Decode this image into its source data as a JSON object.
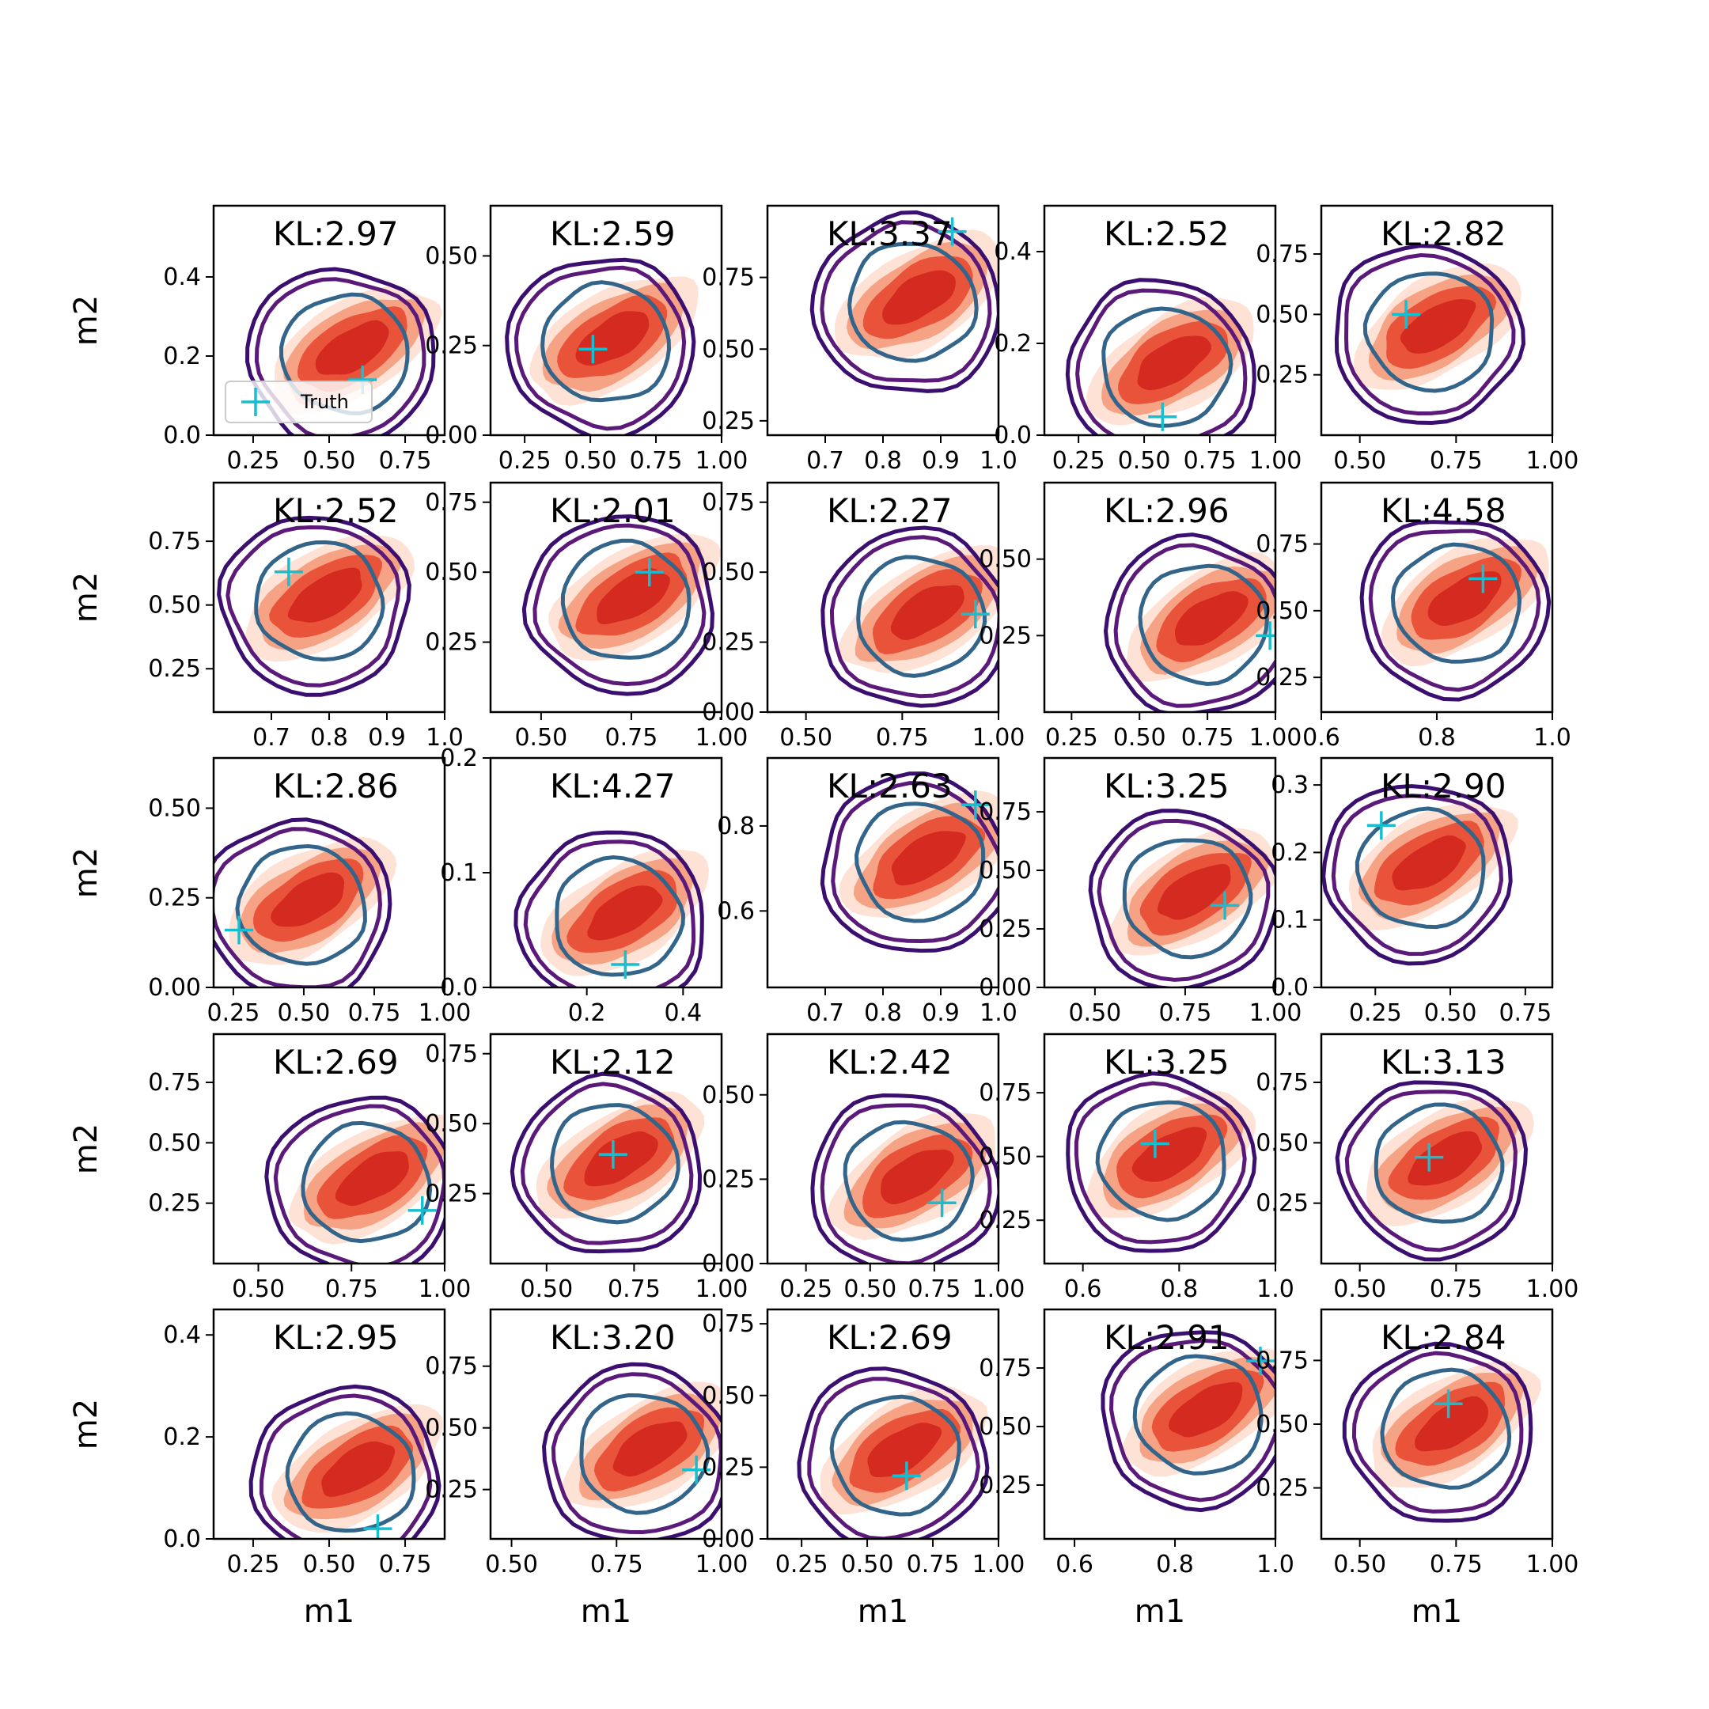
{
  "figure": {
    "legend_label": "Truth",
    "colors": {
      "fill_dark": "#d42a20",
      "fill_mid": "#e8533a",
      "fill_light": "#f6a285",
      "fill_faint": "#fde2d5",
      "contour_outer": "#3b0f6f",
      "contour_mid": "#5b1a7a",
      "contour_inner": "#33658a",
      "truth_marker": "#17becf",
      "axis": "#000000"
    }
  },
  "chart_data": [
    {
      "type": "contour",
      "kl": "KL:2.97",
      "xlim": [
        0.12,
        0.88
      ],
      "ylim": [
        0,
        0.58
      ],
      "xticks": [
        "0.25",
        "0.50",
        "0.75"
      ],
      "xtickv": [
        0.25,
        0.5,
        0.75
      ],
      "yticks": [
        "0.0",
        "0.2",
        "0.4"
      ],
      "ytickv": [
        0,
        0.2,
        0.4
      ],
      "truth": [
        0.61,
        0.14
      ],
      "ylabel": "m2",
      "legend": true
    },
    {
      "type": "contour",
      "kl": "KL:2.59",
      "xlim": [
        0.12,
        1.0
      ],
      "ylim": [
        0,
        0.64
      ],
      "xticks": [
        "0.25",
        "0.50",
        "0.75",
        "1.00"
      ],
      "xtickv": [
        0.25,
        0.5,
        0.75,
        1.0
      ],
      "yticks": [
        "0.00",
        "0.25",
        "0.50"
      ],
      "ytickv": [
        0,
        0.25,
        0.5
      ],
      "truth": [
        0.51,
        0.24
      ]
    },
    {
      "type": "contour",
      "kl": "KL:3.37",
      "xlim": [
        0.6,
        1.0
      ],
      "ylim": [
        0.2,
        1.0
      ],
      "xticks": [
        "0.7",
        "0.8",
        "0.9",
        "1.0"
      ],
      "xtickv": [
        0.7,
        0.8,
        0.9,
        1.0
      ],
      "yticks": [
        "0.25",
        "0.50",
        "0.75"
      ],
      "ytickv": [
        0.25,
        0.5,
        0.75
      ],
      "truth": [
        0.92,
        0.91
      ]
    },
    {
      "type": "contour",
      "kl": "KL:2.52",
      "xlim": [
        0.12,
        1.0
      ],
      "ylim": [
        0,
        0.5
      ],
      "xticks": [
        "0.25",
        "0.50",
        "0.75",
        "1.00"
      ],
      "xtickv": [
        0.25,
        0.5,
        0.75,
        1.0
      ],
      "yticks": [
        "0.0",
        "0.2",
        "0.4"
      ],
      "ytickv": [
        0,
        0.2,
        0.4
      ],
      "truth": [
        0.57,
        0.04
      ]
    },
    {
      "type": "contour",
      "kl": "KL:2.82",
      "xlim": [
        0.4,
        1.0
      ],
      "ylim": [
        0.0,
        0.95
      ],
      "xticks": [
        "0.50",
        "0.75",
        "1.00"
      ],
      "xtickv": [
        0.5,
        0.75,
        1.0
      ],
      "yticks": [
        "0.25",
        "0.50",
        "0.75"
      ],
      "ytickv": [
        0.25,
        0.5,
        0.75
      ],
      "truth": [
        0.62,
        0.5
      ]
    },
    {
      "type": "contour",
      "kl": "KL:2.52",
      "xlim": [
        0.6,
        1.0
      ],
      "ylim": [
        0.08,
        0.98
      ],
      "xticks": [
        "0.7",
        "0.8",
        "0.9",
        "1.0"
      ],
      "xtickv": [
        0.7,
        0.8,
        0.9,
        1.0
      ],
      "yticks": [
        "0.25",
        "0.50",
        "0.75"
      ],
      "ytickv": [
        0.25,
        0.5,
        0.75
      ],
      "truth": [
        0.73,
        0.63
      ],
      "ylabel": "m2"
    },
    {
      "type": "contour",
      "kl": "KL:2.01",
      "xlim": [
        0.36,
        1.0
      ],
      "ylim": [
        0.0,
        0.82
      ],
      "xticks": [
        "0.50",
        "0.75",
        "1.00"
      ],
      "xtickv": [
        0.5,
        0.75,
        1.0
      ],
      "yticks": [
        "0.25",
        "0.50",
        "0.75"
      ],
      "ytickv": [
        0.25,
        0.5,
        0.75
      ],
      "truth": [
        0.8,
        0.5
      ]
    },
    {
      "type": "contour",
      "kl": "KL:2.27",
      "xlim": [
        0.4,
        1.0
      ],
      "ylim": [
        0.0,
        0.82
      ],
      "xticks": [
        "0.50",
        "0.75",
        "1.00"
      ],
      "xtickv": [
        0.5,
        0.75,
        1.0
      ],
      "yticks": [
        "0.00",
        "0.25",
        "0.50",
        "0.75"
      ],
      "ytickv": [
        0,
        0.25,
        0.5,
        0.75
      ],
      "truth": [
        0.94,
        0.35
      ]
    },
    {
      "type": "contour",
      "kl": "KL:2.96",
      "xlim": [
        0.15,
        1.0
      ],
      "ylim": [
        0.0,
        0.75
      ],
      "xticks": [
        "0.25",
        "0.50",
        "0.75",
        "1.00"
      ],
      "xtickv": [
        0.25,
        0.5,
        0.75,
        1.0
      ],
      "yticks": [
        "0.25",
        "0.50"
      ],
      "ytickv": [
        0.25,
        0.5
      ],
      "truth": [
        0.98,
        0.25
      ]
    },
    {
      "type": "contour",
      "kl": "KL:4.58",
      "xlim": [
        0.6,
        1.0
      ],
      "ylim": [
        0.12,
        0.98
      ],
      "xticks": [
        "0.6",
        "0.8",
        "1.0"
      ],
      "xtickv": [
        0.6,
        0.8,
        1.0
      ],
      "yticks": [
        "0.25",
        "0.50",
        "0.75"
      ],
      "ytickv": [
        0.25,
        0.5,
        0.75
      ],
      "truth": [
        0.88,
        0.62
      ]
    },
    {
      "type": "contour",
      "kl": "KL:2.86",
      "xlim": [
        0.18,
        1.0
      ],
      "ylim": [
        0,
        0.64
      ],
      "xticks": [
        "0.25",
        "0.50",
        "0.75",
        "1.00"
      ],
      "xtickv": [
        0.25,
        0.5,
        0.75,
        1.0
      ],
      "yticks": [
        "0.00",
        "0.25",
        "0.50"
      ],
      "ytickv": [
        0,
        0.25,
        0.5
      ],
      "truth": [
        0.27,
        0.16
      ],
      "ylabel": "m2"
    },
    {
      "type": "contour",
      "kl": "KL:4.27",
      "xlim": [
        0.0,
        0.48
      ],
      "ylim": [
        0,
        0.2
      ],
      "xticks": [
        "0.2",
        "0.4"
      ],
      "xtickv": [
        0.2,
        0.4
      ],
      "yticks": [
        "0.0",
        "0.1",
        "0.2"
      ],
      "ytickv": [
        0,
        0.1,
        0.2
      ],
      "truth": [
        0.28,
        0.02
      ]
    },
    {
      "type": "contour",
      "kl": "KL:2.63",
      "xlim": [
        0.6,
        1.0
      ],
      "ylim": [
        0.42,
        0.96
      ],
      "xticks": [
        "0.7",
        "0.8",
        "0.9",
        "1.0"
      ],
      "xtickv": [
        0.7,
        0.8,
        0.9,
        1.0
      ],
      "yticks": [
        "0.6",
        "0.8"
      ],
      "ytickv": [
        0.6,
        0.8
      ],
      "truth": [
        0.96,
        0.85
      ]
    },
    {
      "type": "contour",
      "kl": "KL:3.25",
      "xlim": [
        0.36,
        1.0
      ],
      "ylim": [
        0.0,
        0.98
      ],
      "xticks": [
        "0.50",
        "0.75",
        "1.00"
      ],
      "xtickv": [
        0.5,
        0.75,
        1.0
      ],
      "yticks": [
        "0.00",
        "0.25",
        "0.50",
        "0.75"
      ],
      "ytickv": [
        0,
        0.25,
        0.5,
        0.75
      ],
      "truth": [
        0.86,
        0.35
      ]
    },
    {
      "type": "contour",
      "kl": "KL:2.90",
      "xlim": [
        0.07,
        0.84
      ],
      "ylim": [
        0,
        0.34
      ],
      "xticks": [
        "0.25",
        "0.50",
        "0.75"
      ],
      "xtickv": [
        0.25,
        0.5,
        0.75
      ],
      "yticks": [
        "0.0",
        "0.1",
        "0.2",
        "0.3"
      ],
      "ytickv": [
        0,
        0.1,
        0.2,
        0.3
      ],
      "truth": [
        0.27,
        0.24
      ]
    },
    {
      "type": "contour",
      "kl": "KL:2.69",
      "xlim": [
        0.38,
        1.0
      ],
      "ylim": [
        0.0,
        0.95
      ],
      "xticks": [
        "0.50",
        "0.75",
        "1.00"
      ],
      "xtickv": [
        0.5,
        0.75,
        1.0
      ],
      "yticks": [
        "0.25",
        "0.50",
        "0.75"
      ],
      "ytickv": [
        0.25,
        0.5,
        0.75
      ],
      "truth": [
        0.94,
        0.22
      ],
      "ylabel": "m2"
    },
    {
      "type": "contour",
      "kl": "KL:2.12",
      "xlim": [
        0.34,
        1.0
      ],
      "ylim": [
        0.0,
        0.82
      ],
      "xticks": [
        "0.50",
        "0.75",
        "1.00"
      ],
      "xtickv": [
        0.5,
        0.75,
        1.0
      ],
      "yticks": [
        "0.25",
        "0.50",
        "0.75"
      ],
      "ytickv": [
        0.25,
        0.5,
        0.75
      ],
      "truth": [
        0.69,
        0.39
      ]
    },
    {
      "type": "contour",
      "kl": "KL:2.42",
      "xlim": [
        0.1,
        1.0
      ],
      "ylim": [
        0,
        0.68
      ],
      "xticks": [
        "0.25",
        "0.50",
        "0.75",
        "1.00"
      ],
      "xtickv": [
        0.25,
        0.5,
        0.75,
        1.0
      ],
      "yticks": [
        "0.00",
        "0.25",
        "0.50"
      ],
      "ytickv": [
        0,
        0.25,
        0.5
      ],
      "truth": [
        0.78,
        0.18
      ]
    },
    {
      "type": "contour",
      "kl": "KL:3.25",
      "xlim": [
        0.52,
        1.0
      ],
      "ylim": [
        0.08,
        0.98
      ],
      "xticks": [
        "0.6",
        "0.8",
        "1.0"
      ],
      "xtickv": [
        0.6,
        0.8,
        1.0
      ],
      "yticks": [
        "0.25",
        "0.50",
        "0.75"
      ],
      "ytickv": [
        0.25,
        0.5,
        0.75
      ],
      "truth": [
        0.75,
        0.55
      ]
    },
    {
      "type": "contour",
      "kl": "KL:3.13",
      "xlim": [
        0.4,
        1.0
      ],
      "ylim": [
        0.0,
        0.95
      ],
      "xticks": [
        "0.50",
        "0.75",
        "1.00"
      ],
      "xtickv": [
        0.5,
        0.75,
        1.0
      ],
      "yticks": [
        "0.25",
        "0.50",
        "0.75"
      ],
      "ytickv": [
        0.25,
        0.5,
        0.75
      ],
      "truth": [
        0.68,
        0.44
      ]
    },
    {
      "type": "contour",
      "kl": "KL:2.95",
      "xlim": [
        0.12,
        0.88
      ],
      "ylim": [
        0,
        0.45
      ],
      "xticks": [
        "0.25",
        "0.50",
        "0.75"
      ],
      "xtickv": [
        0.25,
        0.5,
        0.75
      ],
      "yticks": [
        "0.0",
        "0.2",
        "0.4"
      ],
      "ytickv": [
        0,
        0.2,
        0.4
      ],
      "truth": [
        0.66,
        0.02
      ],
      "ylabel": "m2",
      "xlabel": "m1"
    },
    {
      "type": "contour",
      "kl": "KL:3.20",
      "xlim": [
        0.45,
        1.0
      ],
      "ylim": [
        0.05,
        0.98
      ],
      "xticks": [
        "0.50",
        "0.75",
        "1.00"
      ],
      "xtickv": [
        0.5,
        0.75,
        1.0
      ],
      "yticks": [
        "0.25",
        "0.50",
        "0.75"
      ],
      "ytickv": [
        0.25,
        0.5,
        0.75
      ],
      "truth": [
        0.94,
        0.33
      ],
      "xlabel": "m1"
    },
    {
      "type": "contour",
      "kl": "KL:2.69",
      "xlim": [
        0.12,
        1.0
      ],
      "ylim": [
        0,
        0.8
      ],
      "xticks": [
        "0.25",
        "0.50",
        "0.75",
        "1.00"
      ],
      "xtickv": [
        0.25,
        0.5,
        0.75,
        1.0
      ],
      "yticks": [
        "0.00",
        "0.25",
        "0.50",
        "0.75"
      ],
      "ytickv": [
        0,
        0.25,
        0.5,
        0.75
      ],
      "truth": [
        0.65,
        0.22
      ],
      "xlabel": "m1"
    },
    {
      "type": "contour",
      "kl": "KL:2.91",
      "xlim": [
        0.54,
        1.0
      ],
      "ylim": [
        0.02,
        1.0
      ],
      "xticks": [
        "0.6",
        "0.8",
        "1.0"
      ],
      "xtickv": [
        0.6,
        0.8,
        1.0
      ],
      "yticks": [
        "0.25",
        "0.50",
        "0.75"
      ],
      "ytickv": [
        0.25,
        0.5,
        0.75
      ],
      "truth": [
        0.97,
        0.78
      ],
      "xlabel": "m1"
    },
    {
      "type": "contour",
      "kl": "KL:2.84",
      "xlim": [
        0.4,
        1.0
      ],
      "ylim": [
        0.05,
        0.95
      ],
      "xticks": [
        "0.50",
        "0.75",
        "1.00"
      ],
      "xtickv": [
        0.5,
        0.75,
        1.0
      ],
      "yticks": [
        "0.25",
        "0.50",
        "0.75"
      ],
      "ytickv": [
        0.25,
        0.5,
        0.75
      ],
      "truth": [
        0.73,
        0.58
      ],
      "xlabel": "m1"
    }
  ]
}
